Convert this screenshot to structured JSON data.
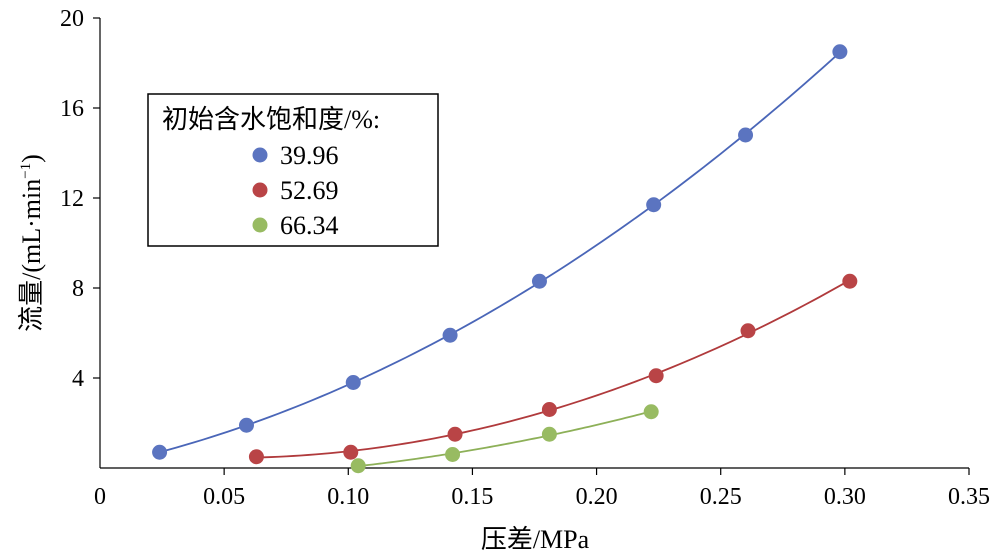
{
  "chart_data": {
    "type": "scatter",
    "xlabel": "压差/MPa",
    "ylabel_main": "流量/(mL·min",
    "ylabel_sup": "−1",
    "ylabel_close": ")",
    "xlim": [
      0,
      0.35
    ],
    "ylim": [
      0,
      20
    ],
    "x_ticks": [
      "0",
      "0.05",
      "0.10",
      "0.15",
      "0.20",
      "0.25",
      "0.30",
      "0.35"
    ],
    "y_ticks": [
      "4",
      "8",
      "12",
      "16",
      "20"
    ],
    "x_tick_values": [
      0,
      0.05,
      0.1,
      0.15,
      0.2,
      0.25,
      0.3,
      0.35
    ],
    "y_tick_values": [
      4,
      8,
      12,
      16,
      20
    ],
    "grid": false,
    "legend_position": "upper-left",
    "legend_title": "初始含水饱和度/%:",
    "series": [
      {
        "name": "39.96",
        "color": "#5b74c0",
        "line_color": "#4a66b8",
        "x": [
          0.024,
          0.059,
          0.102,
          0.141,
          0.177,
          0.223,
          0.26,
          0.298
        ],
        "y": [
          0.7,
          1.9,
          3.8,
          5.9,
          8.3,
          11.7,
          14.8,
          18.5
        ]
      },
      {
        "name": "52.69",
        "color": "#b94446",
        "line_color": "#b03a3c",
        "x": [
          0.063,
          0.101,
          0.143,
          0.181,
          0.224,
          0.261,
          0.302
        ],
        "y": [
          0.5,
          0.7,
          1.5,
          2.6,
          4.1,
          6.1,
          8.3
        ]
      },
      {
        "name": "66.34",
        "color": "#98bb62",
        "line_color": "#8db058",
        "x": [
          0.104,
          0.142,
          0.181,
          0.222
        ],
        "y": [
          0.1,
          0.6,
          1.5,
          2.5
        ]
      }
    ]
  }
}
